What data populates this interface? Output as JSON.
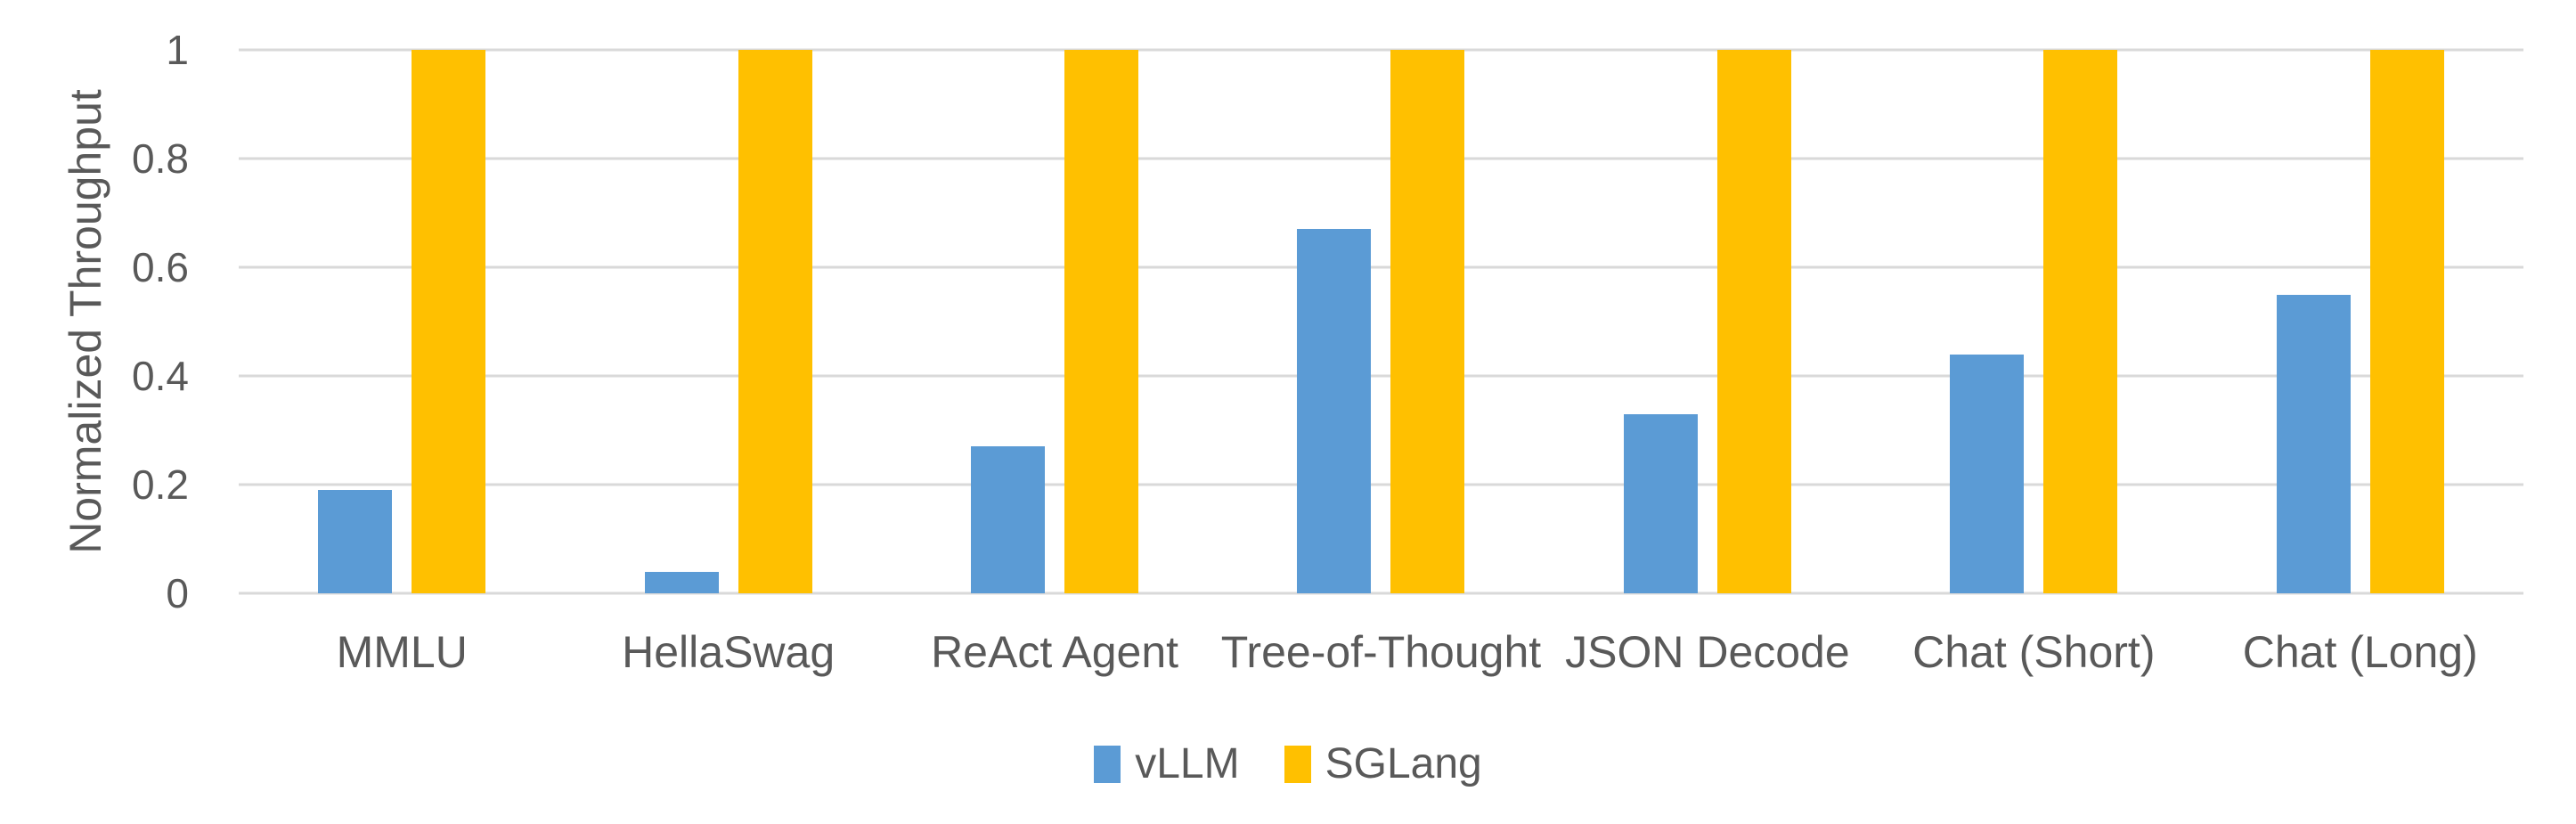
{
  "chart_data": {
    "type": "bar",
    "title": "",
    "xlabel": "",
    "ylabel": "Normalized Throughput",
    "categories": [
      "MMLU",
      "HellaSwag",
      "ReAct Agent",
      "Tree-of-Thought",
      "JSON Decode",
      "Chat (Short)",
      "Chat (Long)"
    ],
    "series": [
      {
        "name": "vLLM",
        "color": "#5B9BD5",
        "values": [
          0.19,
          0.04,
          0.27,
          0.67,
          0.33,
          0.44,
          0.55
        ]
      },
      {
        "name": "SGLang",
        "color": "#FFC000",
        "values": [
          1,
          1,
          1,
          1,
          1,
          1,
          1
        ]
      }
    ],
    "ylim": [
      0,
      1
    ],
    "yticks": [
      0,
      0.2,
      0.4,
      0.6,
      0.8,
      1
    ],
    "ytick_labels": [
      "0",
      "0.2",
      "0.4",
      "0.6",
      "0.8",
      "1"
    ],
    "grid": true,
    "legend_position": "bottom",
    "colors": {
      "text": "#595959",
      "gridline": "#D9D9D9",
      "background": "#FFFFFF"
    }
  }
}
